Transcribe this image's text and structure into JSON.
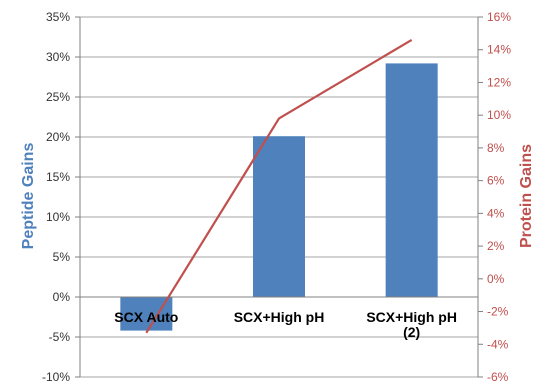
{
  "chart_data": {
    "type": "bar+line",
    "categories": [
      "SCX Auto",
      "SCX+High pH",
      "SCX+High pH\n(2)"
    ],
    "series": [
      {
        "name": "Peptide Gains",
        "type": "bar",
        "axis": "left",
        "values": [
          -4.2,
          20.1,
          29.2
        ],
        "color": "#4f81bd"
      },
      {
        "name": "Protein Gains",
        "type": "line",
        "axis": "right",
        "values": [
          -3.3,
          9.8,
          14.6
        ],
        "color": "#c0504d"
      }
    ],
    "y_left": {
      "label": "Peptide Gains",
      "min": -10,
      "max": 35,
      "step": 5,
      "unit": "%",
      "color": "#4f81bd"
    },
    "y_right": {
      "label": "Protein Gains",
      "min": -6,
      "max": 16,
      "step": 2,
      "unit": "%",
      "color": "#c0504d"
    },
    "grid": true,
    "legend": "none"
  }
}
